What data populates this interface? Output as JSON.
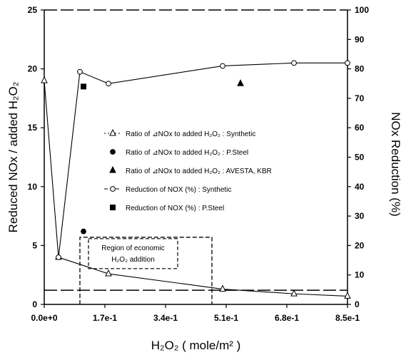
{
  "chart_data": {
    "type": "line",
    "xlabel": "H₂O₂ ( mole/m² )",
    "ylabel_left": "Reduced NOx / added H₂O₂",
    "ylabel_right": "NOx Reduction (%)",
    "xlim": [
      0,
      0.85
    ],
    "ylim_left": [
      0,
      25
    ],
    "ylim_right": [
      0,
      100
    ],
    "x_ticks": [
      "0.0e+0",
      "1.7e-1",
      "3.4e-1",
      "5.1e-1",
      "6.8e-1",
      "8.5e-1"
    ],
    "y_left_ticks": [
      "0",
      "5",
      "10",
      "15",
      "20",
      "25"
    ],
    "y_right_ticks": [
      "0",
      "10",
      "20",
      "30",
      "40",
      "50",
      "60",
      "70",
      "80",
      "90",
      "100"
    ],
    "grid": false,
    "legend_position": "center",
    "series": [
      {
        "name": "Ratio of ⊿NOx to added H₂O₂ : Synthetic",
        "axis": "left",
        "marker": "open-triangle",
        "points": [
          [
            0,
            19
          ],
          [
            0.04,
            4
          ],
          [
            0.18,
            2.6
          ],
          [
            0.5,
            1.3
          ],
          [
            0.7,
            0.9
          ],
          [
            0.85,
            0.7
          ]
        ]
      },
      {
        "name": "Ratio of ⊿NOx to added H₂O₂ : P.Steel",
        "axis": "left",
        "marker": "filled-circle",
        "points": [
          [
            0.11,
            6.2
          ]
        ]
      },
      {
        "name": "Ratio of ⊿NOx to added H₂O₂ : AVESTA, KBR",
        "axis": "right",
        "marker": "filled-triangle",
        "points": [
          [
            0.55,
            75
          ]
        ]
      },
      {
        "name": "Reduction of NOX (%) : Synthetic",
        "axis": "right",
        "marker": "open-circle",
        "points": [
          [
            0.04,
            16
          ],
          [
            0.1,
            79
          ],
          [
            0.18,
            75
          ],
          [
            0.5,
            81
          ],
          [
            0.7,
            82
          ],
          [
            0.85,
            82
          ]
        ]
      },
      {
        "name": "Reduction of NOX (%) : P.Steel",
        "axis": "right",
        "marker": "filled-square",
        "points": [
          [
            0.11,
            74
          ]
        ]
      }
    ],
    "reference_lines": [
      {
        "axis": "left",
        "y": 25,
        "style": "dashed"
      },
      {
        "axis": "left",
        "y": 1.2,
        "style": "dashed"
      }
    ],
    "annotation": {
      "text_lines": [
        "Region of economic",
        "H₂O₂ addition"
      ],
      "x_range": [
        0.1,
        0.47
      ],
      "y_top": 5.7
    }
  }
}
